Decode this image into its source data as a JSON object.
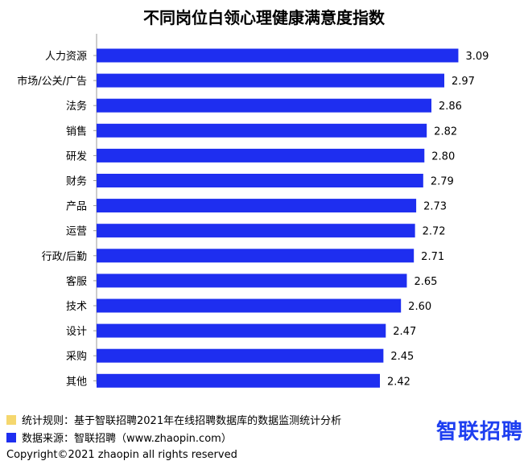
{
  "chart_data": {
    "type": "bar",
    "orientation": "horizontal",
    "title": "不同岗位白领心理健康满意度指数",
    "categories": [
      "人力资源",
      "市场/公关/广告",
      "法务",
      "销售",
      "研发",
      "财务",
      "产品",
      "运营",
      "行政/后勤",
      "客服",
      "技术",
      "设计",
      "采购",
      "其他"
    ],
    "values": [
      3.09,
      2.97,
      2.86,
      2.82,
      2.8,
      2.79,
      2.73,
      2.72,
      2.71,
      2.65,
      2.6,
      2.47,
      2.45,
      2.42
    ],
    "value_labels": [
      "3.09",
      "2.97",
      "2.86",
      "2.82",
      "2.80",
      "2.79",
      "2.73",
      "2.72",
      "2.71",
      "2.65",
      "2.60",
      "2.47",
      "2.45",
      "2.42"
    ],
    "xlim": [
      0,
      3.3
    ],
    "grid": false,
    "bar_color": "#1e2ef0"
  },
  "legend": [
    {
      "color": "#f5d76e",
      "text": "统计规则：基于智联招聘2021年在线招聘数据库的数据监测统计分析"
    },
    {
      "color": "#1e2ef0",
      "text": "数据来源：智联招聘（www.zhaopin.com）"
    }
  ],
  "brand": "智联招聘",
  "copyright": "Copyright©2021 zhaopin all rights reserved"
}
